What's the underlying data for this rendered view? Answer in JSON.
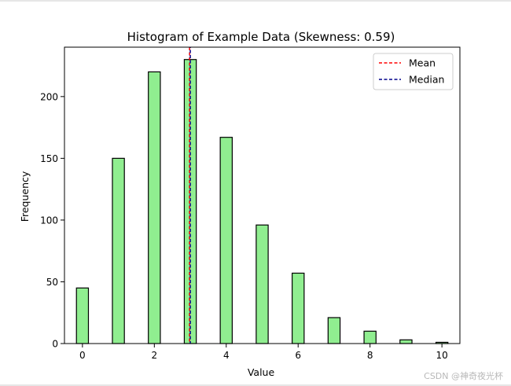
{
  "chart_data": {
    "type": "bar",
    "title": "Histogram of Example Data (Skewness: 0.59)",
    "xlabel": "Value",
    "ylabel": "Frequency",
    "xlim": [
      -0.5,
      10.5
    ],
    "ylim": [
      0,
      240
    ],
    "xticks": [
      0,
      2,
      4,
      6,
      8,
      10
    ],
    "yticks": [
      0,
      50,
      100,
      150,
      200
    ],
    "bin_width": 0.3333,
    "x": [
      0,
      1,
      2,
      3,
      4,
      5,
      6,
      7,
      8,
      9,
      10
    ],
    "values": [
      45,
      150,
      220,
      230,
      167,
      96,
      57,
      21,
      10,
      3,
      1
    ],
    "bar_color": "#90ee90",
    "edge_color": "#000000",
    "mean": 2.98,
    "median": 3.0,
    "mean_color": "#ff0000",
    "median_color": "#00008b",
    "legend": {
      "placement": "top-right",
      "entries": [
        {
          "label": "Mean",
          "color": "#ff0000"
        },
        {
          "label": "Median",
          "color": "#00008b"
        }
      ]
    }
  },
  "watermark": "CSDN @神奇夜光杯"
}
